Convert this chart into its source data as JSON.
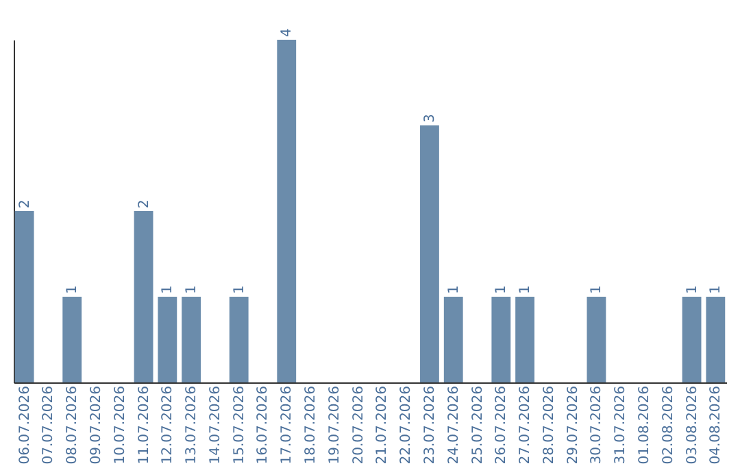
{
  "chart_data": {
    "type": "bar",
    "categories": [
      "06.07.2026",
      "07.07.2026",
      "08.07.2026",
      "09.07.2026",
      "10.07.2026",
      "11.07.2026",
      "12.07.2026",
      "13.07.2026",
      "14.07.2026",
      "15.07.2026",
      "16.07.2026",
      "17.07.2026",
      "18.07.2026",
      "19.07.2026",
      "20.07.2026",
      "21.07.2026",
      "22.07.2026",
      "23.07.2026",
      "24.07.2026",
      "25.07.2026",
      "26.07.2026",
      "27.07.2026",
      "28.07.2026",
      "29.07.2026",
      "30.07.2026",
      "31.07.2026",
      "01.08.2026",
      "02.08.2026",
      "03.08.2026",
      "04.08.2026"
    ],
    "values": [
      2,
      0,
      1,
      0,
      0,
      2,
      1,
      1,
      0,
      1,
      0,
      4,
      0,
      0,
      0,
      0,
      0,
      3,
      1,
      0,
      1,
      1,
      0,
      0,
      1,
      0,
      0,
      0,
      1,
      1
    ],
    "value_labels": [
      "2",
      null,
      "1",
      null,
      null,
      "2",
      "1",
      "1",
      null,
      "1",
      null,
      "4",
      null,
      null,
      null,
      null,
      null,
      "3",
      "1",
      null,
      "1",
      "1",
      null,
      null,
      "1",
      null,
      null,
      null,
      "1",
      "1"
    ],
    "color": "#6b8cab",
    "grid": false
  }
}
